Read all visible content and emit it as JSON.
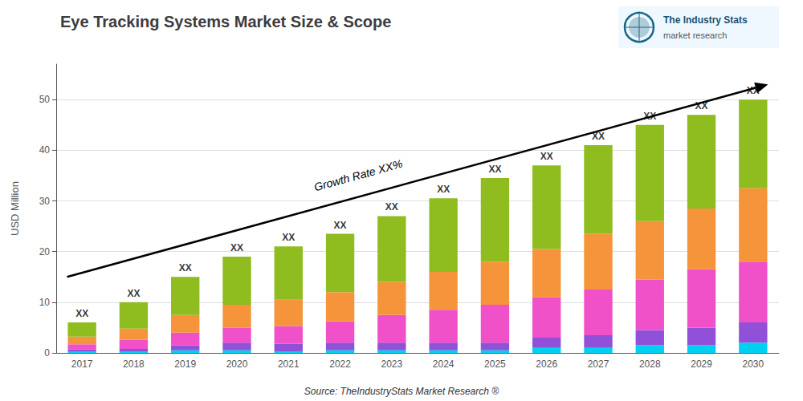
{
  "chart_data": {
    "type": "bar",
    "title": "Eye Tracking Systems Market Size & Scope",
    "ylabel": "USD Million",
    "categories": [
      "2017",
      "2018",
      "2019",
      "2020",
      "2021",
      "2022",
      "2023",
      "2024",
      "2025",
      "2026",
      "2027",
      "2028",
      "2029",
      "2030"
    ],
    "stacked": true,
    "series": [
      {
        "color": "#00d0f0",
        "values": [
          0.3,
          0.3,
          0.5,
          0.5,
          0.3,
          0.5,
          0.5,
          0.5,
          0.5,
          1.0,
          1.0,
          1.5,
          1.5,
          2.0
        ]
      },
      {
        "color": "#9050d8",
        "values": [
          0.4,
          0.5,
          1.0,
          1.5,
          1.5,
          1.5,
          1.5,
          1.5,
          1.5,
          2.0,
          2.5,
          3.0,
          3.5,
          4.0
        ]
      },
      {
        "color": "#f050c8",
        "values": [
          1.0,
          1.8,
          2.5,
          3.0,
          3.5,
          4.2,
          5.5,
          6.5,
          7.5,
          8.0,
          9.0,
          10.0,
          11.5,
          12.0
        ]
      },
      {
        "color": "#f5943a",
        "values": [
          1.5,
          2.2,
          3.5,
          4.5,
          5.2,
          5.8,
          6.5,
          7.5,
          8.5,
          9.5,
          11.0,
          11.5,
          12.0,
          14.5
        ]
      },
      {
        "color": "#8fbc1e",
        "values": [
          2.8,
          5.2,
          7.5,
          9.5,
          10.5,
          11.5,
          13.0,
          14.5,
          16.5,
          16.5,
          17.5,
          19.0,
          18.5,
          17.5
        ]
      }
    ],
    "ylim": [
      0,
      57
    ],
    "yticks": [
      0,
      10,
      20,
      30,
      40,
      50
    ],
    "grid": true,
    "annotations": [
      {
        "type": "label",
        "text": "XX",
        "x": "2017",
        "y": 6.0
      },
      {
        "type": "label",
        "text": "XX",
        "x": "2018",
        "y": 10.0
      },
      {
        "type": "label",
        "text": "XX",
        "x": "2019",
        "y": 15.0
      },
      {
        "type": "label",
        "text": "XX",
        "x": "2020",
        "y": 19.0
      },
      {
        "type": "label",
        "text": "XX",
        "x": "2021",
        "y": 21.0
      },
      {
        "type": "label",
        "text": "XX",
        "x": "2022",
        "y": 23.5
      },
      {
        "type": "label",
        "text": "XX",
        "x": "2023",
        "y": 27.0
      },
      {
        "type": "label",
        "text": "XX",
        "x": "2024",
        "y": 30.5
      },
      {
        "type": "label",
        "text": "XX",
        "x": "2025",
        "y": 34.5
      },
      {
        "type": "label",
        "text": "XX",
        "x": "2026",
        "y": 37.0
      },
      {
        "type": "label",
        "text": "XX",
        "x": "2027",
        "y": 41.0
      },
      {
        "type": "label",
        "text": "XX",
        "x": "2028",
        "y": 45.0
      },
      {
        "type": "label",
        "text": "XX",
        "x": "2029",
        "y": 47.0
      },
      {
        "type": "label",
        "text": "XX",
        "x": "2030",
        "y": 50.0
      },
      {
        "type": "arrow",
        "y0": 15.0,
        "y1": 53.0
      },
      {
        "type": "text",
        "text": "Growth Rate XX%",
        "y": 34.0
      },
      {
        "type": "logo",
        "text": "The Industry Stats",
        "subtext": "market research"
      },
      {
        "type": "source",
        "text": "Source: TheIndustryStats Market Research ®"
      }
    ]
  }
}
